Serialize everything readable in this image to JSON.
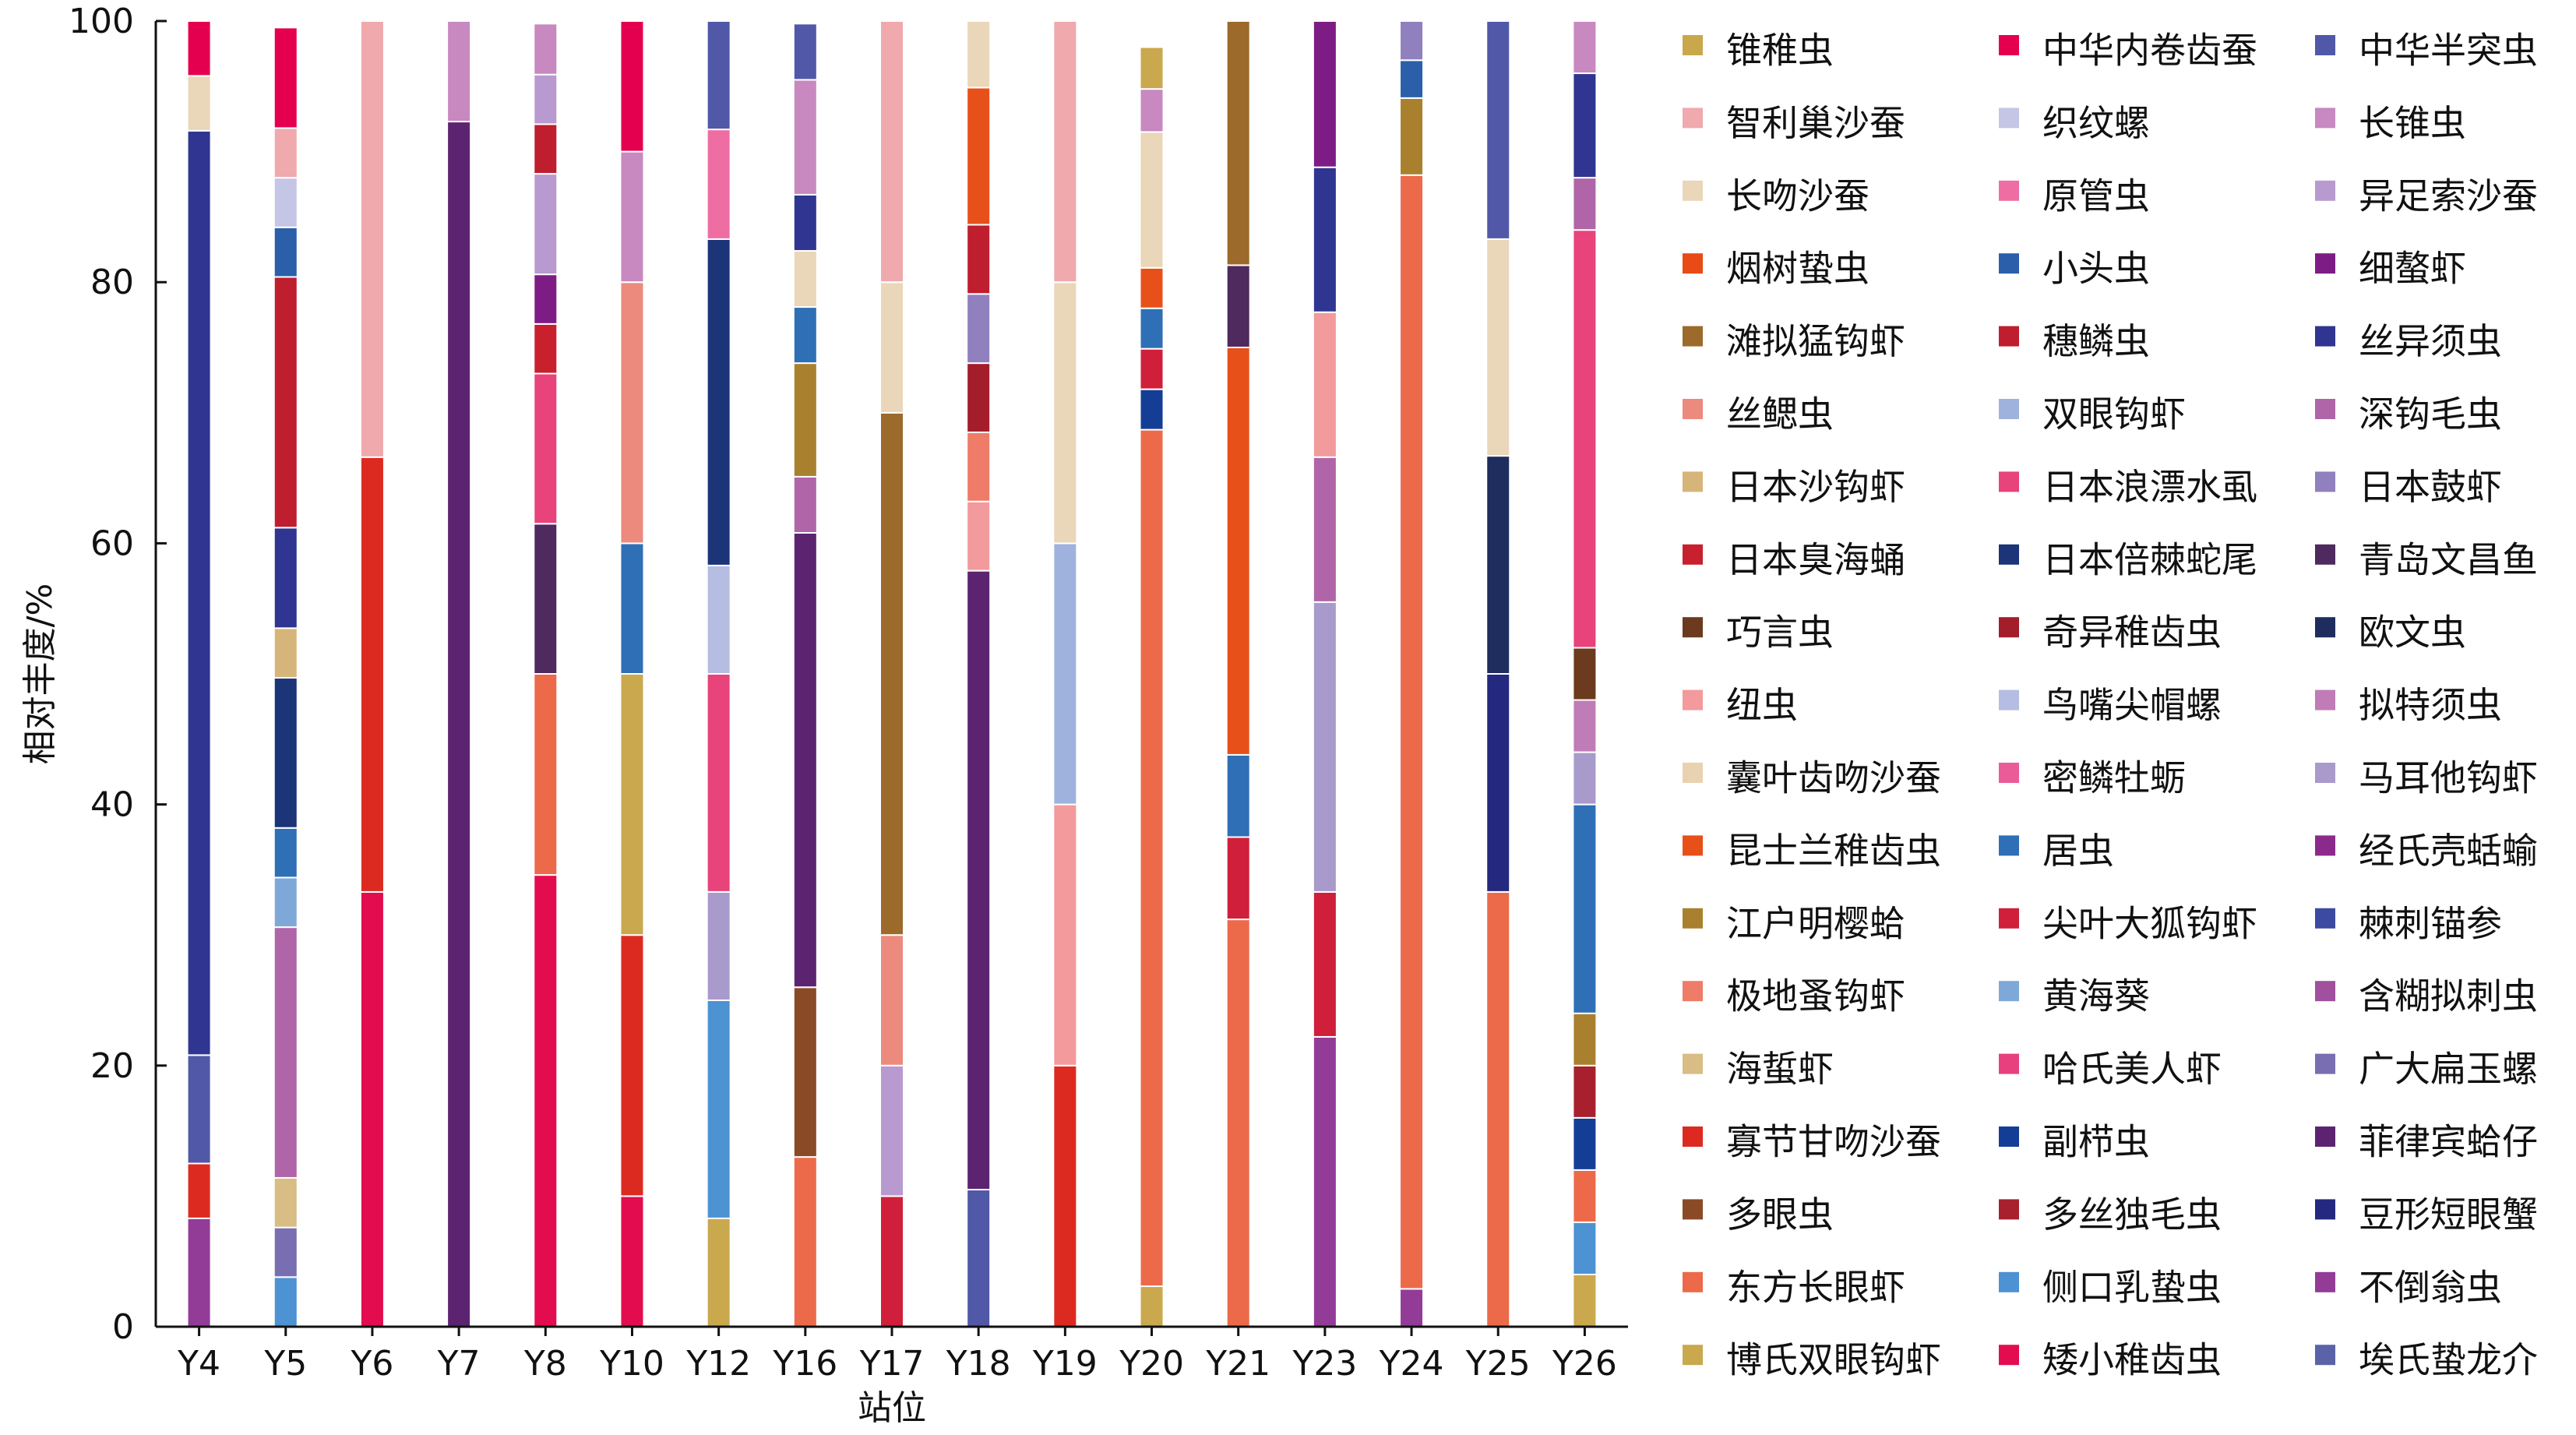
{
  "chart_data": {
    "type": "bar",
    "stacked": true,
    "title": "",
    "xlabel": "站位",
    "ylabel": "相对丰度/%",
    "ylim": [
      0,
      100
    ],
    "yticks": [
      0,
      20,
      40,
      60,
      80,
      100
    ],
    "legend_position": "right",
    "categories": [
      "Y4",
      "Y5",
      "Y6",
      "Y7",
      "Y8",
      "Y10",
      "Y12",
      "Y16",
      "Y17",
      "Y18",
      "Y19",
      "Y20",
      "Y21",
      "Y23",
      "Y24",
      "Y25",
      "Y26"
    ],
    "legend": [
      {
        "name": "锥稚虫",
        "color": "#c8a84a"
      },
      {
        "name": "中华内卷齿蚕",
        "color": "#e5004f"
      },
      {
        "name": "中华半突虫",
        "color": "#5158a8"
      },
      {
        "name": "智利巢沙蚕",
        "color": "#f0a9ad"
      },
      {
        "name": "织纹螺",
        "color": "#c5c5e6"
      },
      {
        "name": "长锥虫",
        "color": "#c888c0"
      },
      {
        "name": "长吻沙蚕",
        "color": "#ead6b8"
      },
      {
        "name": "原管虫",
        "color": "#ee6ea4"
      },
      {
        "name": "异足索沙蚕",
        "color": "#b89ad0"
      },
      {
        "name": "烟树蛰虫",
        "color": "#e84b16"
      },
      {
        "name": "小头虫",
        "color": "#2b5faa"
      },
      {
        "name": "细螯虾",
        "color": "#7e1c86"
      },
      {
        "name": "滩拟猛钩虾",
        "color": "#9c6a2a"
      },
      {
        "name": "穗鳞虫",
        "color": "#bf1e2e"
      },
      {
        "name": "丝异须虫",
        "color": "#2f3590"
      },
      {
        "name": "丝鳃虫",
        "color": "#ec8a7e"
      },
      {
        "name": "双眼钩虾",
        "color": "#9fb2de"
      },
      {
        "name": "深钩毛虫",
        "color": "#b065a8"
      },
      {
        "name": "日本沙钩虾",
        "color": "#d6b57a"
      },
      {
        "name": "日本浪漂水虱",
        "color": "#e8437a"
      },
      {
        "name": "日本鼓虾",
        "color": "#9080be"
      },
      {
        "name": "日本臭海蛹",
        "color": "#c8202c"
      },
      {
        "name": "日本倍棘蛇尾",
        "color": "#1c3478"
      },
      {
        "name": "青岛文昌鱼",
        "color": "#4e2a5e"
      },
      {
        "name": "巧言虫",
        "color": "#6c3a1e"
      },
      {
        "name": "奇异稚齿虫",
        "color": "#a31d2b"
      },
      {
        "name": "欧文虫",
        "color": "#1e2d5e"
      },
      {
        "name": "纽虫",
        "color": "#f29a9c"
      },
      {
        "name": "鸟嘴尖帽螺",
        "color": "#b5bde2"
      },
      {
        "name": "拟特须虫",
        "color": "#c07cb6"
      },
      {
        "name": "囊叶齿吻沙蚕",
        "color": "#e9d2b0"
      },
      {
        "name": "密鳞牡蛎",
        "color": "#e95c98"
      },
      {
        "name": "马耳他钩虾",
        "color": "#a99acc"
      },
      {
        "name": "昆士兰稚齿虫",
        "color": "#e8501a"
      },
      {
        "name": "居虫",
        "color": "#2f6fb6"
      },
      {
        "name": "经氏壳蛞蝓",
        "color": "#8c2a8c"
      },
      {
        "name": "江户明樱蛤",
        "color": "#a9802e"
      },
      {
        "name": "尖叶大狐钩虾",
        "color": "#d01f3a"
      },
      {
        "name": "棘刺锚参",
        "color": "#3c4ba0"
      },
      {
        "name": "极地蚤钩虾",
        "color": "#ee7c68"
      },
      {
        "name": "黄海葵",
        "color": "#7ea8d8"
      },
      {
        "name": "含糊拟刺虫",
        "color": "#a0509c"
      },
      {
        "name": "海蜇虾",
        "color": "#d8bd84"
      },
      {
        "name": "哈氏美人虾",
        "color": "#e8407e"
      },
      {
        "name": "广大扁玉螺",
        "color": "#7a6eb2"
      },
      {
        "name": "寡节甘吻沙蚕",
        "color": "#dd2a20"
      },
      {
        "name": "副栉虫",
        "color": "#143e96"
      },
      {
        "name": "菲律宾蛤仔",
        "color": "#5c2470"
      },
      {
        "name": "多眼虫",
        "color": "#8a4a26"
      },
      {
        "name": "多丝独毛虫",
        "color": "#a8202e"
      },
      {
        "name": "豆形短眼蟹",
        "color": "#24287e"
      },
      {
        "name": "东方长眼虾",
        "color": "#ec6a4a"
      },
      {
        "name": "侧口乳蛰虫",
        "color": "#4d92d2"
      },
      {
        "name": "不倒翁虫",
        "color": "#923c98"
      },
      {
        "name": "博氏双眼钩虾",
        "color": "#c9a84e"
      },
      {
        "name": "矮小稚齿虫",
        "color": "#e30c4e"
      },
      {
        "name": "埃氏蛰龙介",
        "color": "#5a62a8"
      }
    ],
    "stacks": [
      [
        [
          "不倒翁虫",
          8.3
        ],
        [
          "寡节甘吻沙蚕",
          4.2
        ],
        [
          "中华半突虫",
          8.3
        ],
        [
          "丝异须虫",
          70.8
        ],
        [
          "长吻沙蚕",
          4.2
        ],
        [
          "中华内卷齿蚕",
          4.2
        ]
      ],
      [
        [
          "侧口乳蛰虫",
          3.8
        ],
        [
          "广大扁玉螺",
          3.8
        ],
        [
          "海蜇虾",
          3.8
        ],
        [
          "深钩毛虫",
          19.2
        ],
        [
          "黄海葵",
          3.8
        ],
        [
          "居虫",
          3.8
        ],
        [
          "日本倍棘蛇尾",
          11.5
        ],
        [
          "日本沙钩虾",
          3.8
        ],
        [
          "丝异须虫",
          7.7
        ],
        [
          "穗鳞虫",
          19.2
        ],
        [
          "小头虫",
          3.8
        ],
        [
          "织纹螺",
          3.8
        ],
        [
          "智利巢沙蚕",
          3.8
        ],
        [
          "中华内卷齿蚕",
          7.7
        ]
      ],
      [
        [
          "矮小稚齿虫",
          33.3
        ],
        [
          "寡节甘吻沙蚕",
          33.3
        ],
        [
          "智利巢沙蚕",
          33.4
        ]
      ],
      [
        [
          "菲律宾蛤仔",
          92.3
        ],
        [
          "长锥虫",
          7.7
        ]
      ],
      [
        [
          "矮小稚齿虫",
          34.6
        ],
        [
          "东方长眼虾",
          15.4
        ],
        [
          "青岛文昌鱼",
          11.5
        ],
        [
          "日本浪漂水虱",
          11.5
        ],
        [
          "日本臭海蛹",
          3.8
        ],
        [
          "细螯虾",
          3.8
        ],
        [
          "异足索沙蚕",
          7.7
        ],
        [
          "穗鳞虫",
          3.8
        ],
        [
          "异足索沙蚕",
          3.8
        ],
        [
          "长锥虫",
          3.9
        ]
      ],
      [
        [
          "矮小稚齿虫",
          10
        ],
        [
          "寡节甘吻沙蚕",
          20
        ],
        [
          "博氏双眼钩虾",
          20
        ],
        [
          "尖叶大狐钩虾",
          0
        ],
        [
          "中华内卷齿蚕",
          0
        ],
        [
          "寡节甘吻沙蚕",
          0
        ],
        [
          "矮小稚齿虫",
          0
        ],
        [
          "居虫",
          10
        ],
        [
          "丝鳃虫",
          20
        ],
        [
          "长锥虫",
          10
        ],
        [
          "中华内卷齿蚕",
          10
        ]
      ],
      [
        [
          "博氏双眼钩虾",
          8.3
        ],
        [
          "侧口乳蛰虫",
          16.7
        ],
        [
          "马耳他钩虾",
          8.3
        ],
        [
          "日本浪漂水虱",
          16.7
        ],
        [
          "鸟嘴尖帽螺",
          8.3
        ],
        [
          "日本倍棘蛇尾",
          25
        ],
        [
          "原管虫",
          8.4
        ],
        [
          "中华半突虫",
          8.3
        ]
      ],
      [
        [
          "东方长眼虾",
          13
        ],
        [
          "多眼虫",
          13
        ],
        [
          "菲律宾蛤仔",
          34.8
        ],
        [
          "深钩毛虫",
          4.3
        ],
        [
          "江户明樱蛤",
          8.7
        ],
        [
          "居虫",
          4.3
        ],
        [
          "长吻沙蚕",
          4.3
        ],
        [
          "丝异须虫",
          4.3
        ],
        [
          "长锥虫",
          8.8
        ],
        [
          "中华半突虫",
          4.3
        ]
      ],
      [
        [
          "尖叶大狐钩虾",
          10
        ],
        [
          "异足索沙蚕",
          10
        ],
        [
          "丝鳃虫",
          10
        ],
        [
          "滩拟猛钩虾",
          40
        ],
        [
          "长吻沙蚕",
          10
        ],
        [
          "智利巢沙蚕",
          20
        ]
      ],
      [
        [
          "中华半突虫",
          10.5
        ],
        [
          "菲律宾蛤仔",
          47.4
        ],
        [
          "纽虫",
          5.3
        ],
        [
          "极地蚤钩虾",
          5.3
        ],
        [
          "奇异稚齿虫",
          5.3
        ],
        [
          "日本鼓虾",
          5.3
        ],
        [
          "穗鳞虫",
          5.3
        ],
        [
          "昆士兰稚齿虫",
          10.5
        ],
        [
          "长吻沙蚕",
          5.1
        ]
      ],
      [
        [
          "寡节甘吻沙蚕",
          20
        ],
        [
          "纽虫",
          20
        ],
        [
          "双眼钩虾",
          20
        ],
        [
          "长吻沙蚕",
          20
        ],
        [
          "智利巢沙蚕",
          20
        ]
      ],
      [
        [
          "博氏双眼钩虾",
          3.1
        ],
        [
          "东方长眼虾",
          65.6
        ],
        [
          "副栉虫",
          3.1
        ],
        [
          "尖叶大狐钩虾",
          3.1
        ],
        [
          "居虫",
          3.1
        ],
        [
          "昆士兰稚齿虫",
          3.1
        ],
        [
          "长吻沙蚕",
          10.4
        ],
        [
          "长锥虫",
          3.3
        ],
        [
          "博氏双眼钩虾",
          3.2
        ]
      ],
      [
        [
          "东方长眼虾",
          31.2
        ],
        [
          "尖叶大狐钩虾",
          6.3
        ],
        [
          "居虫",
          6.3
        ],
        [
          "昆士兰稚齿虫",
          31.2
        ],
        [
          "青岛文昌鱼",
          6.3
        ],
        [
          "滩拟猛钩虾",
          18.7
        ]
      ],
      [
        [
          "不倒翁虫",
          22.2
        ],
        [
          "尖叶大狐钩虾",
          11.1
        ],
        [
          "马耳他钩虾",
          22.2
        ],
        [
          "深钩毛虫",
          11.1
        ],
        [
          "纽虫",
          11.1
        ],
        [
          "丝异须虫",
          11.1
        ],
        [
          "细螯虾",
          11.2
        ]
      ],
      [
        [
          "不倒翁虫",
          2.9
        ],
        [
          "东方长眼虾",
          85.3
        ],
        [
          "江户明樱蛤",
          5.9
        ],
        [
          "小头虫",
          2.9
        ],
        [
          "日本鼓虾",
          3.0
        ]
      ],
      [
        [
          "东方长眼虾",
          33.3
        ],
        [
          "豆形短眼蟹",
          16.7
        ],
        [
          "欧文虫",
          16.7
        ],
        [
          "长吻沙蚕",
          16.6
        ],
        [
          "中华半突虫",
          16.7
        ]
      ],
      [
        [
          "博氏双眼钩虾",
          4
        ],
        [
          "侧口乳蛰虫",
          4
        ],
        [
          "东方长眼虾",
          4
        ],
        [
          "副栉虫",
          4
        ],
        [
          "多丝独毛虫",
          4
        ],
        [
          "江户明樱蛤",
          4
        ],
        [
          "居虫",
          16
        ],
        [
          "马耳他钩虾",
          4
        ],
        [
          "拟特须虫",
          4
        ],
        [
          "巧言虫",
          4
        ],
        [
          "日本浪漂水虱",
          32
        ],
        [
          "深钩毛虫",
          4
        ],
        [
          "丝异须虫",
          8
        ],
        [
          "长锥虫",
          4
        ]
      ]
    ]
  }
}
